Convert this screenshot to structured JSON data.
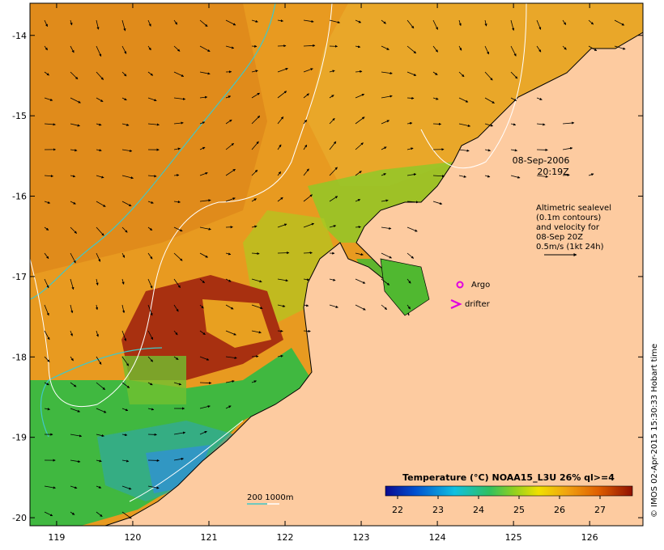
{
  "map": {
    "x_ticks": [
      "119",
      "120",
      "121",
      "122",
      "123",
      "124",
      "125",
      "126"
    ],
    "y_ticks": [
      "-14",
      "-15",
      "-16",
      "-17",
      "-18",
      "-19",
      "-20"
    ],
    "x_range": [
      118.65,
      126.7
    ],
    "y_range": [
      -20.1,
      -13.6
    ],
    "timestamp_line1": "08-Sep-2006",
    "timestamp_line2": "20:19Z",
    "velocity_info": [
      "Altimetric sealevel",
      "(0.1m contours)",
      "and velocity for",
      "08-Sep 20Z",
      "0.5m/s (1kt 24h)"
    ],
    "legend": {
      "argo_label": "Argo",
      "drifter_label": "drifter",
      "argo_color": "#e000e0",
      "drifter_color": "#e000e0"
    },
    "contour_legend_label": "200  1000m",
    "contour_colors": {
      "isobath_200": "#40c8c8",
      "isobath_1000": "#ffffff"
    },
    "colorbar": {
      "title": "Temperature (°C) NOAA15_L3U 26% ql>=4",
      "ticks": [
        "22",
        "23",
        "24",
        "25",
        "26",
        "27"
      ],
      "range": [
        21.7,
        27.8
      ]
    },
    "credit": "© IMOS 02-Apr-2015 15:30:33 Hobart time",
    "colors": {
      "land": "#fdcba0",
      "warm": "#e8a020",
      "cool": "#40c040",
      "coldest": "#3080e0",
      "hot": "#a02000"
    }
  }
}
